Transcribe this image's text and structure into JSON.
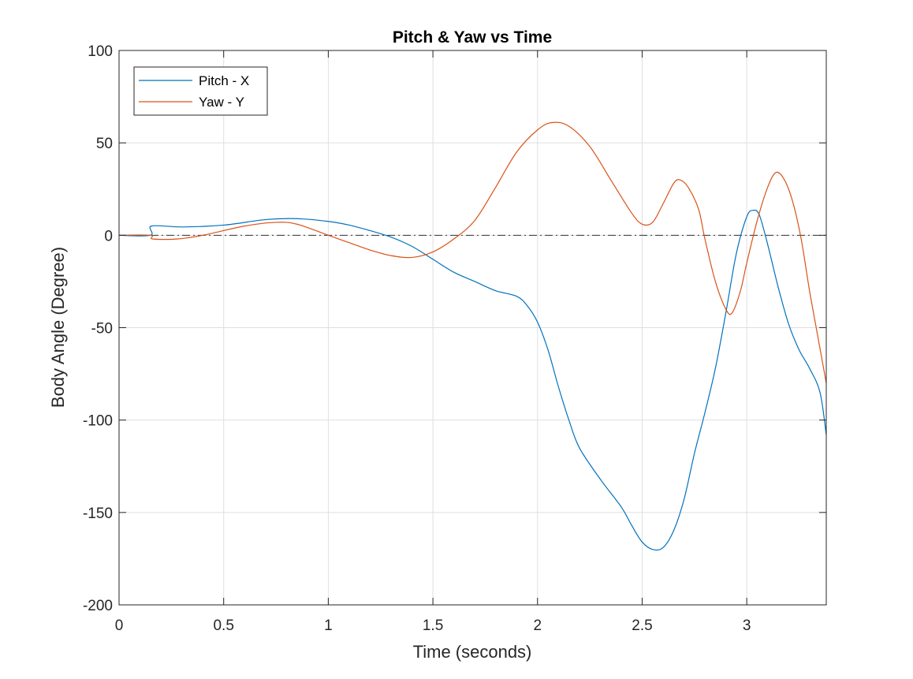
{
  "chart_data": {
    "type": "line",
    "title": "Pitch & Yaw vs Time",
    "xlabel": "Time (seconds)",
    "ylabel": "Body Angle (Degree)",
    "xlim": [
      0,
      3.38
    ],
    "ylim": [
      -200,
      100
    ],
    "xticks": [
      0,
      0.5,
      1,
      1.5,
      2,
      2.5,
      3
    ],
    "xtick_labels": [
      "0",
      "0.5",
      "1",
      "1.5",
      "2",
      "2.5",
      "3"
    ],
    "yticks": [
      100,
      50,
      0,
      -50,
      -100,
      -150,
      -200
    ],
    "ytick_labels": [
      "100",
      "50",
      "0",
      "-50",
      "-100",
      "-150",
      "-200"
    ],
    "grid": true,
    "legend_position": "top-left",
    "reference_line": {
      "y": 0,
      "style": "dash-dot",
      "color": "#333333"
    },
    "series": [
      {
        "name": "Pitch - X",
        "color": "#0072BD",
        "points": [
          [
            0,
            0
          ],
          [
            0.15,
            0
          ],
          [
            0.155,
            5
          ],
          [
            0.3,
            4.5
          ],
          [
            0.5,
            5.5
          ],
          [
            0.7,
            8.5
          ],
          [
            0.85,
            9
          ],
          [
            1.0,
            7.5
          ],
          [
            1.1,
            5.5
          ],
          [
            1.2,
            2.5
          ],
          [
            1.3,
            -1
          ],
          [
            1.4,
            -6
          ],
          [
            1.5,
            -13
          ],
          [
            1.6,
            -20
          ],
          [
            1.7,
            -25
          ],
          [
            1.8,
            -30
          ],
          [
            1.9,
            -33
          ],
          [
            1.95,
            -38
          ],
          [
            2.0,
            -47
          ],
          [
            2.05,
            -62
          ],
          [
            2.1,
            -82
          ],
          [
            2.15,
            -100
          ],
          [
            2.2,
            -115
          ],
          [
            2.3,
            -132
          ],
          [
            2.4,
            -147
          ],
          [
            2.45,
            -157
          ],
          [
            2.5,
            -166
          ],
          [
            2.55,
            -170
          ],
          [
            2.6,
            -169
          ],
          [
            2.65,
            -160
          ],
          [
            2.7,
            -143
          ],
          [
            2.75,
            -118
          ],
          [
            2.8,
            -96
          ],
          [
            2.85,
            -72
          ],
          [
            2.9,
            -42
          ],
          [
            2.95,
            -10
          ],
          [
            3.0,
            10
          ],
          [
            3.03,
            13.5
          ],
          [
            3.06,
            11
          ],
          [
            3.1,
            -5
          ],
          [
            3.15,
            -28
          ],
          [
            3.2,
            -48
          ],
          [
            3.25,
            -62
          ],
          [
            3.3,
            -72
          ],
          [
            3.35,
            -85
          ],
          [
            3.38,
            -108
          ]
        ]
      },
      {
        "name": "Yaw - Y",
        "color": "#D95319",
        "points": [
          [
            0,
            0
          ],
          [
            0.15,
            0
          ],
          [
            0.16,
            -2
          ],
          [
            0.28,
            -2
          ],
          [
            0.4,
            0
          ],
          [
            0.6,
            5
          ],
          [
            0.75,
            7
          ],
          [
            0.85,
            6
          ],
          [
            1.0,
            0
          ],
          [
            1.1,
            -4
          ],
          [
            1.2,
            -8
          ],
          [
            1.3,
            -11
          ],
          [
            1.4,
            -12
          ],
          [
            1.5,
            -9
          ],
          [
            1.6,
            -2
          ],
          [
            1.7,
            8
          ],
          [
            1.8,
            26
          ],
          [
            1.9,
            45
          ],
          [
            2.0,
            57
          ],
          [
            2.07,
            61
          ],
          [
            2.15,
            59
          ],
          [
            2.25,
            48
          ],
          [
            2.35,
            30
          ],
          [
            2.45,
            12
          ],
          [
            2.5,
            6
          ],
          [
            2.55,
            7
          ],
          [
            2.6,
            17
          ],
          [
            2.65,
            28
          ],
          [
            2.68,
            30
          ],
          [
            2.72,
            26
          ],
          [
            2.77,
            14
          ],
          [
            2.8,
            -2
          ],
          [
            2.85,
            -25
          ],
          [
            2.9,
            -40
          ],
          [
            2.93,
            -42
          ],
          [
            2.97,
            -30
          ],
          [
            3.0,
            -15
          ],
          [
            3.05,
            8
          ],
          [
            3.1,
            26
          ],
          [
            3.14,
            34
          ],
          [
            3.18,
            30
          ],
          [
            3.22,
            18
          ],
          [
            3.26,
            -2
          ],
          [
            3.3,
            -30
          ],
          [
            3.34,
            -55
          ],
          [
            3.38,
            -80
          ]
        ]
      }
    ]
  }
}
